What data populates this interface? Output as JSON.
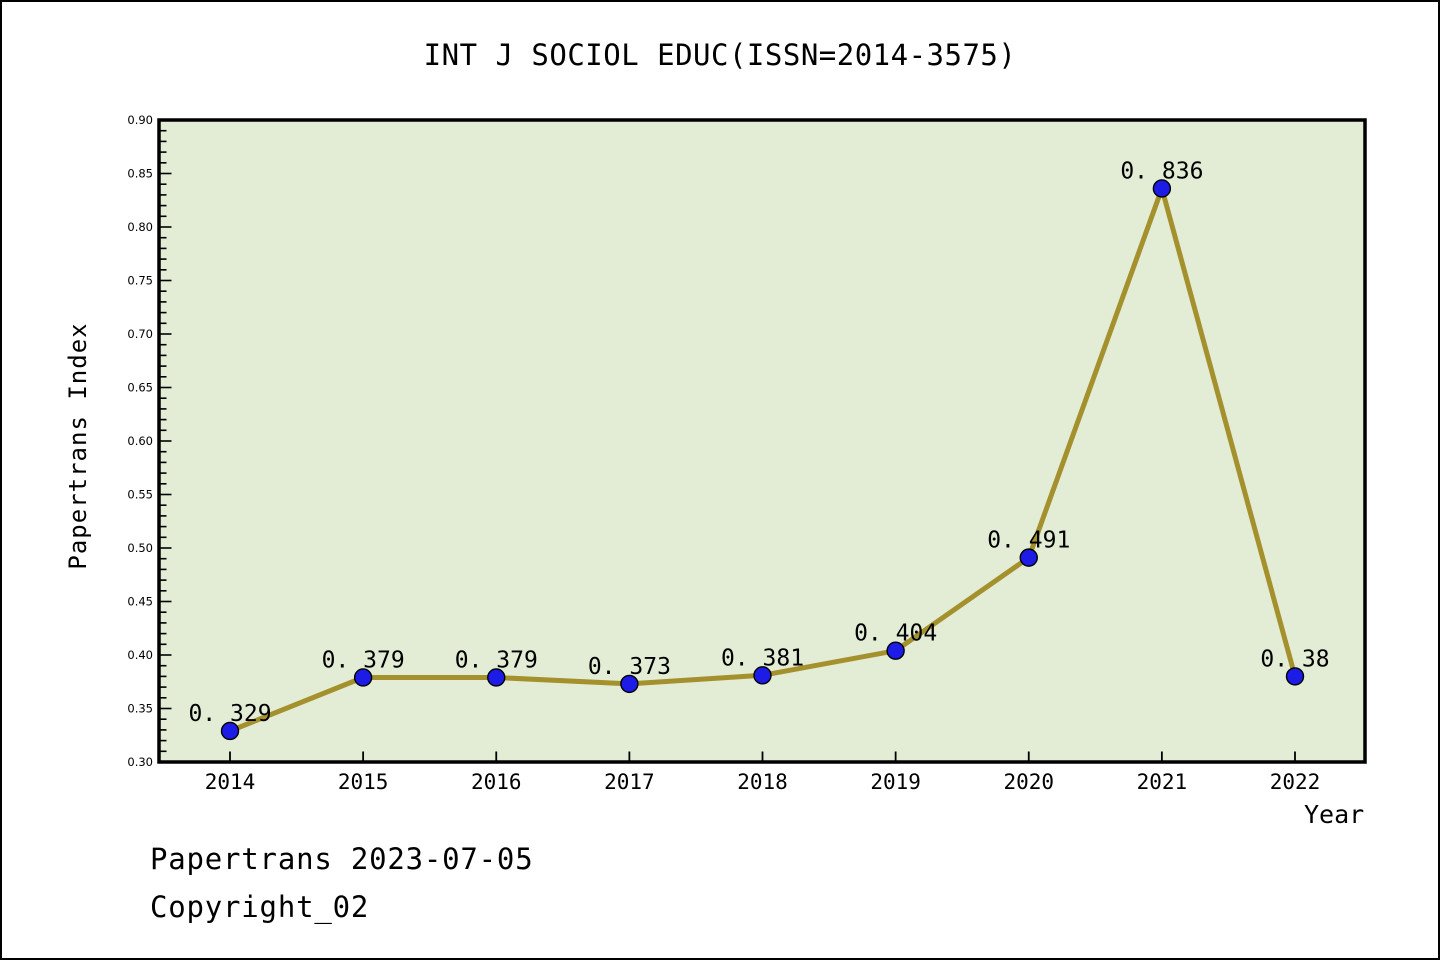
{
  "header": {
    "title": "INT J SOCIOL EDUC(ISSN=2014-3575)"
  },
  "footer": {
    "line1": "Papertrans 2023-07-05",
    "line2": "Copyright_02"
  },
  "chart_data": {
    "type": "line",
    "title": "INT J SOCIOL EDUC(ISSN=2014-3575)",
    "xlabel": "Year",
    "ylabel": "Papertrans Index",
    "categories": [
      "2014",
      "2015",
      "2016",
      "2017",
      "2018",
      "2019",
      "2020",
      "2021",
      "2022"
    ],
    "series": [
      {
        "name": "Papertrans Index",
        "values": [
          0.329,
          0.379,
          0.379,
          0.373,
          0.381,
          0.404,
          0.491,
          0.836,
          0.38
        ]
      }
    ],
    "point_labels": [
      "0. 329",
      "0. 379",
      "0. 379",
      "0. 373",
      "0. 381",
      "0. 404",
      "0. 491",
      "0. 836",
      "0. 38"
    ],
    "ylim": [
      0.3,
      0.9
    ],
    "ytick_step": 0.05,
    "ytick_minor_step": 0.01,
    "ytick_labels": [
      "0.30",
      "0.35",
      "0.40",
      "0.45",
      "0.50",
      "0.55",
      "0.60",
      "0.65",
      "0.70",
      "0.75",
      "0.80",
      "0.85",
      "0.90"
    ],
    "grid": false,
    "legend": "none",
    "colors": {
      "line": "#a4912e",
      "marker_fill": "#1c1ce6",
      "marker_edge": "#000000",
      "plot_background": "#e3edd5",
      "frame": "#000000"
    }
  }
}
